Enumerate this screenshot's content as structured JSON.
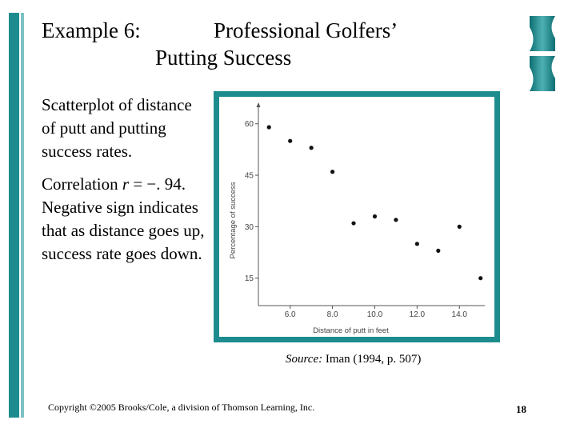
{
  "slide": {
    "title_prefix": "Example 6:",
    "title_line1": "Professional Golfers’",
    "title_line2": "Putting Success",
    "description": "Scatterplot of distance of putt and putting success rates.",
    "correlation_label": "Correlation ",
    "correlation_symbol": "r",
    "correlation_value": " = −. 94.",
    "correlation_explanation": "Negative sign indicates that as distance goes up, success rate goes down.",
    "source_label": "Source:",
    "source_text": " Iman (1994, p. 507)",
    "copyright": "Copyright ©2005 Brooks/Cole, a division of Thomson Learning, Inc.",
    "page_number": "18"
  },
  "colors": {
    "accent": "#1d8c8f",
    "accent_light": "#7ec1c3"
  },
  "chart_data": {
    "type": "scatter",
    "title": "",
    "xlabel": "Distance of putt in feet",
    "ylabel": "Percentage of success",
    "xlim": [
      4.5,
      15.2
    ],
    "ylim": [
      7,
      66
    ],
    "xticks": [
      "6.0",
      "8.0",
      "10.0",
      "12.0",
      "14.0"
    ],
    "yticks": [
      "15",
      "30",
      "45",
      "60"
    ],
    "points": [
      {
        "x": 5.0,
        "y": 59
      },
      {
        "x": 6.0,
        "y": 55
      },
      {
        "x": 7.0,
        "y": 53
      },
      {
        "x": 8.0,
        "y": 46
      },
      {
        "x": 9.0,
        "y": 31
      },
      {
        "x": 10.0,
        "y": 33
      },
      {
        "x": 11.0,
        "y": 32
      },
      {
        "x": 12.0,
        "y": 25
      },
      {
        "x": 13.0,
        "y": 23
      },
      {
        "x": 14.0,
        "y": 30
      },
      {
        "x": 15.0,
        "y": 15
      }
    ]
  }
}
